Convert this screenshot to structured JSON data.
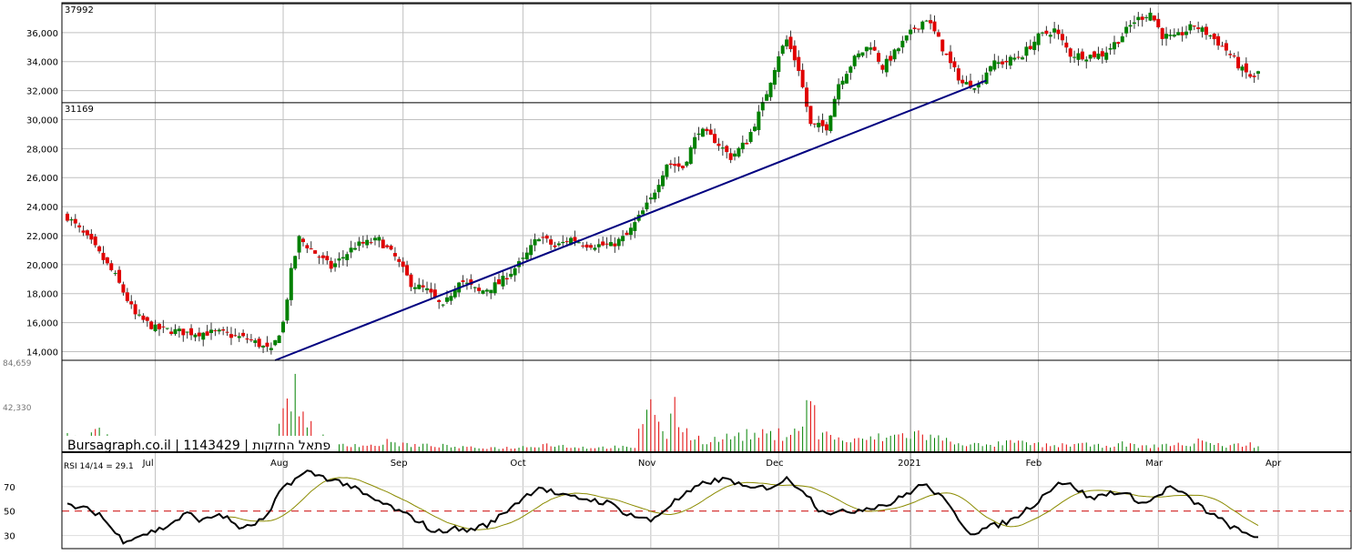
{
  "chart_data": {
    "type": "candlestick",
    "watermark": "Bursagraph.co.il | 1143429 | פתאל החזקות",
    "price_panel": {
      "ylim": [
        13400,
        38000
      ],
      "ticks": [
        "14,000",
        "16,000",
        "18,000",
        "20,000",
        "22,000",
        "24,000",
        "26,000",
        "28,000",
        "30,000",
        "32,000",
        "34,000",
        "36,000"
      ],
      "tick_values": [
        14000,
        16000,
        18000,
        20000,
        22000,
        24000,
        26000,
        28000,
        30000,
        32000,
        34000,
        36000
      ],
      "high_line": {
        "label": "37992",
        "value": 37992
      },
      "low_line": {
        "label": "31169",
        "value": 31169
      },
      "trendline": {
        "from": {
          "day": 52,
          "price": 13400
        },
        "to": {
          "day": 230,
          "price": 32700
        },
        "color": "#000080"
      }
    },
    "volume_panel": {
      "ticks": [
        "84,659",
        "42,330"
      ],
      "tick_values": [
        84659,
        42330
      ],
      "max": 84659
    },
    "month_labels": [
      "Jul",
      "Aug",
      "Sep",
      "Oct",
      "Nov",
      "Dec",
      "2021",
      "Feb",
      "Mar",
      "Apr"
    ],
    "month_days": [
      22,
      54,
      84,
      114,
      146,
      178,
      211,
      243,
      273,
      303
    ],
    "rsi_panel": {
      "title": "RSI 14/14 = 29.1",
      "ticks": [
        "70",
        "50",
        "30"
      ],
      "tick_values": [
        70,
        50,
        30
      ],
      "reference_level": 50,
      "ylim": [
        20,
        90
      ]
    },
    "colors": {
      "up": "#008000",
      "down": "#e00000",
      "trend": "#000080",
      "rsi": "#000000",
      "rsi_ma": "#8b8b00",
      "ref": "#cc0000",
      "grid": "#c0c0c0"
    },
    "close_anchors": [
      [
        0,
        23300
      ],
      [
        6,
        21500
      ],
      [
        12,
        19200
      ],
      [
        17,
        16500
      ],
      [
        22,
        15600
      ],
      [
        30,
        15300
      ],
      [
        38,
        15300
      ],
      [
        46,
        14800
      ],
      [
        51,
        14000
      ],
      [
        54,
        16000
      ],
      [
        56,
        19500
      ],
      [
        58,
        21800
      ],
      [
        62,
        20800
      ],
      [
        66,
        19800
      ],
      [
        72,
        21300
      ],
      [
        78,
        21700
      ],
      [
        82,
        20500
      ],
      [
        86,
        18700
      ],
      [
        90,
        18200
      ],
      [
        94,
        17000
      ],
      [
        98,
        19000
      ],
      [
        103,
        18100
      ],
      [
        108,
        18700
      ],
      [
        114,
        20300
      ],
      [
        118,
        22000
      ],
      [
        122,
        21200
      ],
      [
        126,
        21800
      ],
      [
        130,
        21400
      ],
      [
        136,
        21300
      ],
      [
        140,
        22000
      ],
      [
        146,
        24500
      ],
      [
        150,
        27000
      ],
      [
        154,
        26700
      ],
      [
        158,
        29300
      ],
      [
        162,
        28600
      ],
      [
        166,
        27400
      ],
      [
        170,
        28500
      ],
      [
        174,
        31000
      ],
      [
        178,
        34500
      ],
      [
        180,
        35500
      ],
      [
        183,
        33500
      ],
      [
        186,
        29600
      ],
      [
        190,
        29500
      ],
      [
        193,
        32500
      ],
      [
        197,
        34200
      ],
      [
        201,
        35200
      ],
      [
        204,
        33600
      ],
      [
        207,
        34600
      ],
      [
        212,
        36300
      ],
      [
        215,
        37000
      ],
      [
        218,
        35500
      ],
      [
        221,
        33800
      ],
      [
        224,
        32500
      ],
      [
        228,
        32400
      ],
      [
        231,
        33800
      ],
      [
        235,
        34000
      ],
      [
        239,
        34500
      ],
      [
        243,
        35700
      ],
      [
        247,
        36200
      ],
      [
        251,
        34500
      ],
      [
        255,
        34400
      ],
      [
        259,
        34500
      ],
      [
        263,
        35500
      ],
      [
        267,
        36800
      ],
      [
        271,
        37400
      ],
      [
        274,
        35800
      ],
      [
        277,
        35600
      ],
      [
        282,
        36500
      ],
      [
        286,
        35800
      ],
      [
        290,
        34800
      ],
      [
        294,
        33400
      ],
      [
        297,
        32800
      ],
      [
        298,
        33300
      ]
    ],
    "rsi_anchors": [
      [
        0,
        55
      ],
      [
        4,
        52
      ],
      [
        8,
        48
      ],
      [
        12,
        32
      ],
      [
        14,
        26
      ],
      [
        18,
        30
      ],
      [
        24,
        36
      ],
      [
        30,
        48
      ],
      [
        34,
        42
      ],
      [
        38,
        48
      ],
      [
        44,
        35
      ],
      [
        50,
        45
      ],
      [
        54,
        70
      ],
      [
        60,
        82
      ],
      [
        64,
        78
      ],
      [
        70,
        72
      ],
      [
        76,
        60
      ],
      [
        80,
        55
      ],
      [
        84,
        48
      ],
      [
        88,
        42
      ],
      [
        92,
        32
      ],
      [
        96,
        36
      ],
      [
        100,
        34
      ],
      [
        106,
        40
      ],
      [
        112,
        56
      ],
      [
        118,
        70
      ],
      [
        124,
        62
      ],
      [
        130,
        60
      ],
      [
        136,
        56
      ],
      [
        140,
        48
      ],
      [
        146,
        42
      ],
      [
        152,
        58
      ],
      [
        160,
        74
      ],
      [
        166,
        76
      ],
      [
        170,
        68
      ],
      [
        176,
        70
      ],
      [
        180,
        76
      ],
      [
        184,
        68
      ],
      [
        188,
        52
      ],
      [
        192,
        48
      ],
      [
        196,
        50
      ],
      [
        202,
        54
      ],
      [
        206,
        56
      ],
      [
        210,
        64
      ],
      [
        214,
        72
      ],
      [
        218,
        64
      ],
      [
        222,
        48
      ],
      [
        226,
        32
      ],
      [
        230,
        36
      ],
      [
        236,
        42
      ],
      [
        242,
        56
      ],
      [
        248,
        74
      ],
      [
        252,
        70
      ],
      [
        256,
        60
      ],
      [
        262,
        66
      ],
      [
        266,
        62
      ],
      [
        270,
        56
      ],
      [
        276,
        70
      ],
      [
        280,
        62
      ],
      [
        286,
        48
      ],
      [
        290,
        40
      ],
      [
        294,
        32
      ],
      [
        298,
        29
      ]
    ],
    "volume_anchors": [
      [
        0,
        18
      ],
      [
        4,
        10
      ],
      [
        8,
        22
      ],
      [
        12,
        8
      ],
      [
        16,
        12
      ],
      [
        20,
        6
      ],
      [
        24,
        8
      ],
      [
        28,
        4
      ],
      [
        34,
        3
      ],
      [
        40,
        3
      ],
      [
        46,
        4
      ],
      [
        50,
        6
      ],
      [
        52,
        14
      ],
      [
        54,
        36
      ],
      [
        55,
        78
      ],
      [
        57,
        62
      ],
      [
        59,
        42
      ],
      [
        61,
        28
      ],
      [
        63,
        16
      ],
      [
        66,
        10
      ],
      [
        70,
        8
      ],
      [
        76,
        6
      ],
      [
        80,
        10
      ],
      [
        84,
        8
      ],
      [
        88,
        6
      ],
      [
        92,
        7
      ],
      [
        96,
        5
      ],
      [
        100,
        4
      ],
      [
        106,
        4
      ],
      [
        112,
        4
      ],
      [
        116,
        6
      ],
      [
        120,
        8
      ],
      [
        126,
        5
      ],
      [
        132,
        4
      ],
      [
        138,
        5
      ],
      [
        142,
        3
      ],
      [
        146,
        70
      ],
      [
        148,
        28
      ],
      [
        150,
        18
      ],
      [
        152,
        44
      ],
      [
        156,
        16
      ],
      [
        160,
        12
      ],
      [
        164,
        14
      ],
      [
        168,
        18
      ],
      [
        172,
        18
      ],
      [
        176,
        18
      ],
      [
        180,
        20
      ],
      [
        184,
        30
      ],
      [
        186,
        62
      ],
      [
        188,
        20
      ],
      [
        192,
        16
      ],
      [
        196,
        10
      ],
      [
        200,
        14
      ],
      [
        206,
        16
      ],
      [
        212,
        20
      ],
      [
        216,
        16
      ],
      [
        220,
        12
      ],
      [
        226,
        8
      ],
      [
        230,
        6
      ],
      [
        236,
        10
      ],
      [
        242,
        8
      ],
      [
        246,
        6
      ],
      [
        252,
        8
      ],
      [
        258,
        6
      ],
      [
        264,
        8
      ],
      [
        270,
        5
      ],
      [
        276,
        8
      ],
      [
        280,
        6
      ],
      [
        284,
        14
      ],
      [
        286,
        8
      ],
      [
        290,
        6
      ],
      [
        296,
        8
      ],
      [
        298,
        5
      ]
    ],
    "x_max": 300
  }
}
